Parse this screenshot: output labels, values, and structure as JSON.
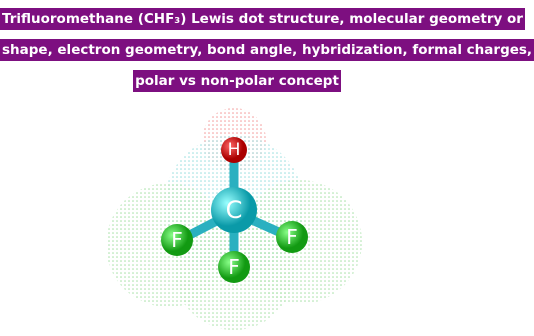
{
  "title": {
    "lines": [
      "Trifluoromethane (CHF₃) Lewis dot structure, molecular geometry or",
      "shape, electron geometry, bond angle, hybridization, formal charges,",
      "polar vs non-polar concept"
    ]
  },
  "atoms": [
    {
      "label": "H"
    },
    {
      "label": "C"
    },
    {
      "label": "F"
    },
    {
      "label": "F"
    },
    {
      "label": "F"
    }
  ]
}
